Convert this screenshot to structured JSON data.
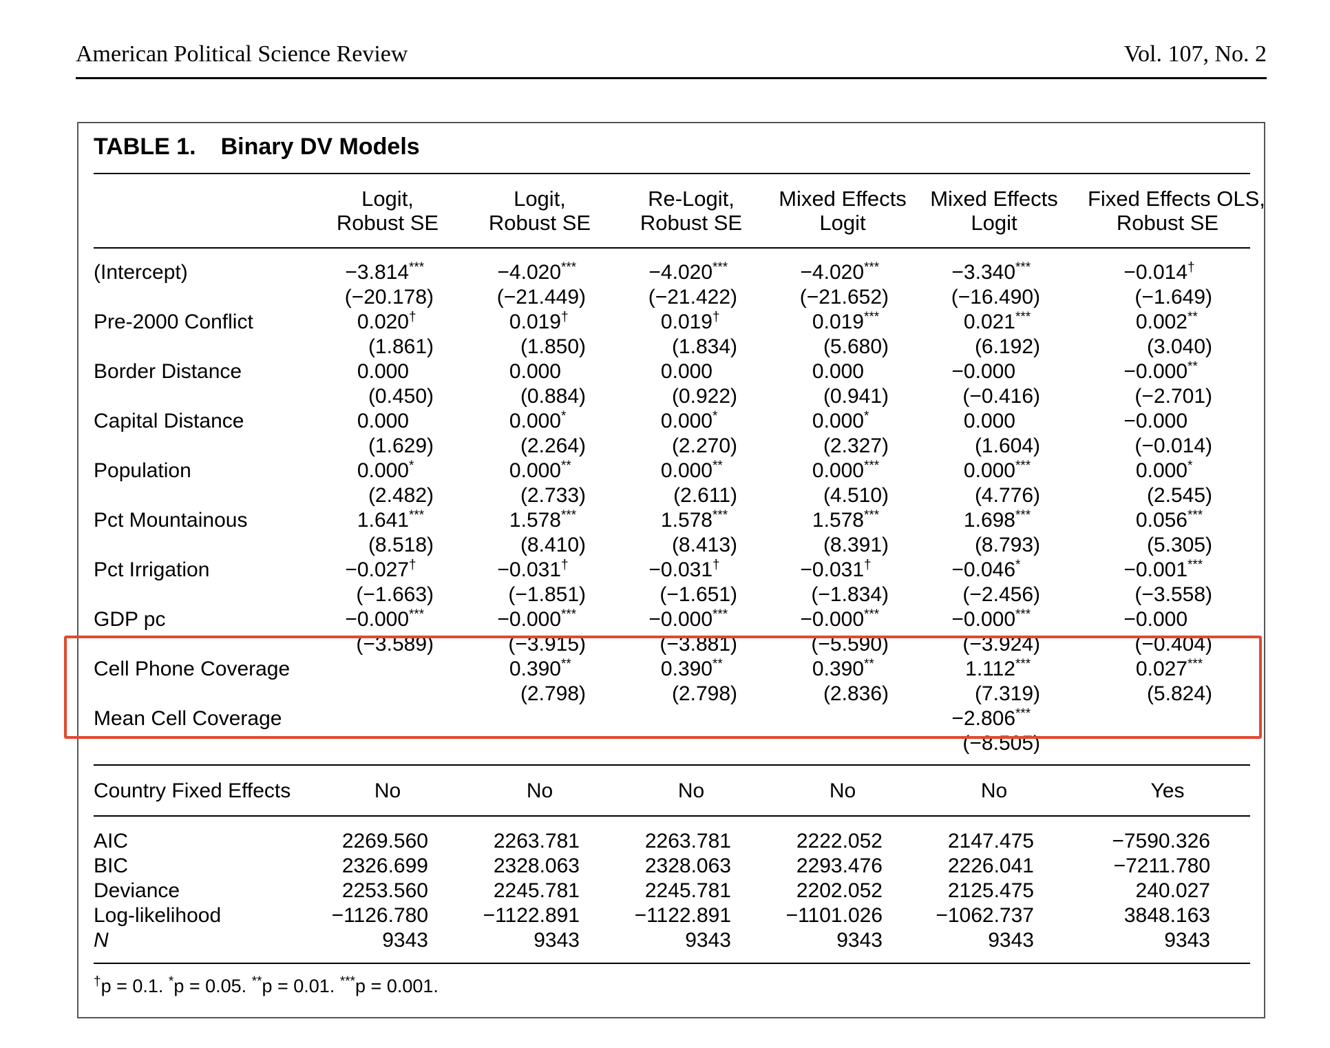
{
  "header": {
    "journal": "American Political Science Review",
    "volume": "Vol. 107, No. 2"
  },
  "table": {
    "label": "TABLE 1.",
    "title": "Binary DV Models",
    "columns": [
      [
        "Logit,",
        "Robust SE"
      ],
      [
        "Logit,",
        "Robust SE"
      ],
      [
        "Re-Logit,",
        "Robust SE"
      ],
      [
        "Mixed Effects",
        "Logit"
      ],
      [
        "Mixed Effects",
        "Logit"
      ],
      [
        "Fixed Effects OLS,",
        "Robust SE"
      ]
    ],
    "rows": [
      {
        "label": "(Intercept)",
        "coef": [
          [
            "−3.814",
            "***"
          ],
          [
            "−4.020",
            "***"
          ],
          [
            "−4.020",
            "***"
          ],
          [
            "−4.020",
            "***"
          ],
          [
            "−3.340",
            "***"
          ],
          [
            "−0.014",
            "†"
          ]
        ],
        "t": [
          "(−20.178)",
          "(−21.449)",
          "(−21.422)",
          "(−21.652)",
          "(−16.490)",
          "(−1.649)"
        ]
      },
      {
        "label": "Pre-2000 Conflict",
        "coef": [
          [
            "0.020",
            "†"
          ],
          [
            "0.019",
            "†"
          ],
          [
            "0.019",
            "†"
          ],
          [
            "0.019",
            "***"
          ],
          [
            "0.021",
            "***"
          ],
          [
            "0.002",
            "**"
          ]
        ],
        "t": [
          "(1.861)",
          "(1.850)",
          "(1.834)",
          "(5.680)",
          "(6.192)",
          "(3.040)"
        ]
      },
      {
        "label": "Border Distance",
        "coef": [
          [
            "0.000",
            ""
          ],
          [
            "0.000",
            ""
          ],
          [
            "0.000",
            ""
          ],
          [
            "0.000",
            ""
          ],
          [
            "−0.000",
            ""
          ],
          [
            "−0.000",
            "**"
          ]
        ],
        "t": [
          "(0.450)",
          "(0.884)",
          "(0.922)",
          "(0.941)",
          "(−0.416)",
          "(−2.701)"
        ]
      },
      {
        "label": "Capital Distance",
        "coef": [
          [
            "0.000",
            ""
          ],
          [
            "0.000",
            "*"
          ],
          [
            "0.000",
            "*"
          ],
          [
            "0.000",
            "*"
          ],
          [
            "0.000",
            ""
          ],
          [
            "−0.000",
            ""
          ]
        ],
        "t": [
          "(1.629)",
          "(2.264)",
          "(2.270)",
          "(2.327)",
          "(1.604)",
          "(−0.014)"
        ]
      },
      {
        "label": "Population",
        "coef": [
          [
            "0.000",
            "*"
          ],
          [
            "0.000",
            "**"
          ],
          [
            "0.000",
            "**"
          ],
          [
            "0.000",
            "***"
          ],
          [
            "0.000",
            "***"
          ],
          [
            "0.000",
            "*"
          ]
        ],
        "t": [
          "(2.482)",
          "(2.733)",
          "(2.611)",
          "(4.510)",
          "(4.776)",
          "(2.545)"
        ]
      },
      {
        "label": "Pct Mountainous",
        "coef": [
          [
            "1.641",
            "***"
          ],
          [
            "1.578",
            "***"
          ],
          [
            "1.578",
            "***"
          ],
          [
            "1.578",
            "***"
          ],
          [
            "1.698",
            "***"
          ],
          [
            "0.056",
            "***"
          ]
        ],
        "t": [
          "(8.518)",
          "(8.410)",
          "(8.413)",
          "(8.391)",
          "(8.793)",
          "(5.305)"
        ]
      },
      {
        "label": "Pct Irrigation",
        "coef": [
          [
            "−0.027",
            "†"
          ],
          [
            "−0.031",
            "†"
          ],
          [
            "−0.031",
            "†"
          ],
          [
            "−0.031",
            "†"
          ],
          [
            "−0.046",
            "*"
          ],
          [
            "−0.001",
            "***"
          ]
        ],
        "t": [
          "(−1.663)",
          "(−1.851)",
          "(−1.651)",
          "(−1.834)",
          "(−2.456)",
          "(−3.558)"
        ]
      },
      {
        "label": "GDP pc",
        "coef": [
          [
            "−0.000",
            "***"
          ],
          [
            "−0.000",
            "***"
          ],
          [
            "−0.000",
            "***"
          ],
          [
            "−0.000",
            "***"
          ],
          [
            "−0.000",
            "***"
          ],
          [
            "−0.000",
            ""
          ]
        ],
        "t": [
          "(−3.589)",
          "(−3.915)",
          "(−3.881)",
          "(−5.590)",
          "(−3.924)",
          "(−0.404)"
        ]
      },
      {
        "label": "Cell Phone Coverage",
        "coef": [
          [
            "",
            ""
          ],
          [
            "0.390",
            "**"
          ],
          [
            "0.390",
            "**"
          ],
          [
            "0.390",
            "**"
          ],
          [
            "1.112",
            "***"
          ],
          [
            "0.027",
            "***"
          ]
        ],
        "t": [
          "",
          "(2.798)",
          "(2.798)",
          "(2.836)",
          "(7.319)",
          "(5.824)"
        ]
      },
      {
        "label": "Mean Cell Coverage",
        "coef": [
          [
            "",
            ""
          ],
          [
            "",
            ""
          ],
          [
            "",
            ""
          ],
          [
            "",
            ""
          ],
          [
            "−2.806",
            "***"
          ],
          [
            "",
            ""
          ]
        ],
        "t": [
          "",
          "",
          "",
          "",
          "(−8.505)",
          ""
        ]
      }
    ],
    "fixed_effects": {
      "label": "Country Fixed Effects",
      "values": [
        "No",
        "No",
        "No",
        "No",
        "No",
        "Yes"
      ]
    },
    "stats": [
      {
        "label": "AIC",
        "values": [
          "2269.560",
          "2263.781",
          "2263.781",
          "2222.052",
          "2147.475",
          "−7590.326"
        ]
      },
      {
        "label": "BIC",
        "values": [
          "2326.699",
          "2328.063",
          "2328.063",
          "2293.476",
          "2226.041",
          "−7211.780"
        ]
      },
      {
        "label": "Deviance",
        "values": [
          "2253.560",
          "2245.781",
          "2245.781",
          "2202.052",
          "2125.475",
          "240.027"
        ]
      },
      {
        "label": "Log-likelihood",
        "values": [
          "−1126.780",
          "−1122.891",
          "−1122.891",
          "−1101.026",
          "−1062.737",
          "3848.163"
        ]
      },
      {
        "label": "N",
        "values": [
          "9343",
          "9343",
          "9343",
          "9343",
          "9343",
          "9343"
        ]
      }
    ],
    "footnote": [
      {
        "sym": "†",
        "text": "p = 0.1."
      },
      {
        "sym": "*",
        "text": "p = 0.05."
      },
      {
        "sym": "**",
        "text": "p = 0.01."
      },
      {
        "sym": "***",
        "text": "p = 0.001."
      }
    ]
  },
  "colors": {
    "highlight": "#e04a2e"
  }
}
